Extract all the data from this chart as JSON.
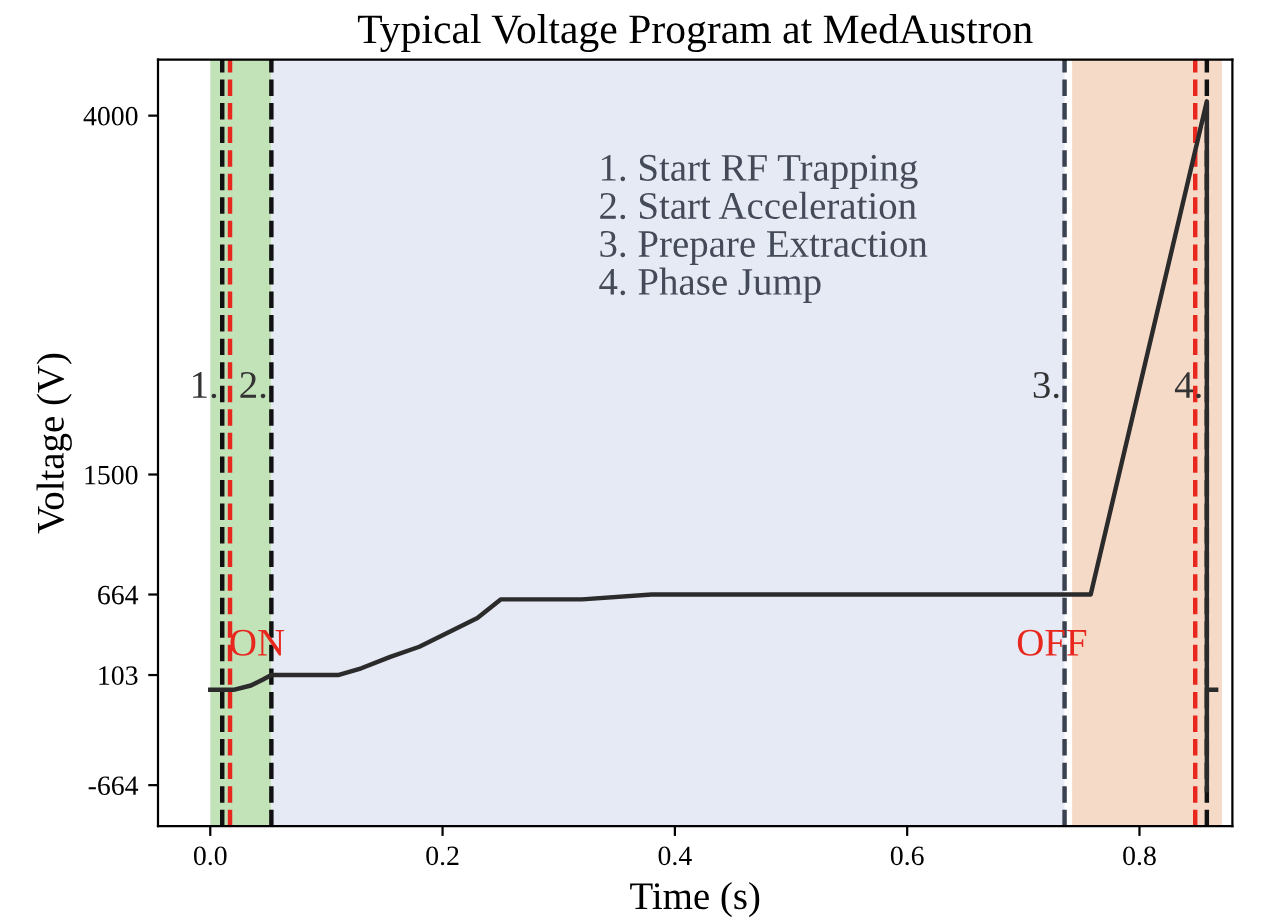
{
  "chart_data": {
    "type": "line",
    "title": "Typical Voltage Program at MedAustron",
    "xlabel": "Time (s)",
    "ylabel": "Voltage (V)",
    "series": [
      {
        "color": "#2b2b2b",
        "x": [
          0.0,
          0.02,
          0.035,
          0.045,
          0.0526,
          0.11,
          0.13,
          0.155,
          0.18,
          0.2,
          0.23,
          0.25,
          0.32,
          0.38,
          0.758,
          0.858,
          0.858
        ],
        "values": [
          0,
          0,
          30,
          70,
          103,
          103,
          150,
          230,
          300,
          380,
          500,
          630,
          630,
          664,
          664,
          4100,
          -700
        ]
      },
      {
        "color": "#2b2b2b",
        "x": [
          0.858,
          0.866
        ],
        "values": [
          0,
          0
        ]
      }
    ],
    "xlim": [
      -0.045,
      0.88
    ],
    "ylim": [
      -950,
      4390
    ],
    "xticks": [
      {
        "value": 0,
        "label": "0.0"
      },
      0.2,
      0.4,
      0.6,
      0.8
    ],
    "yticks": [
      -664,
      103,
      664,
      1500,
      4000
    ],
    "grid": false,
    "line_style": "solid",
    "marker": "none",
    "bands": [
      {
        "axis": "x",
        "from": 0.0,
        "to": 0.0526,
        "color": "#c2e2b8"
      },
      {
        "axis": "x",
        "from": 0.0526,
        "to": 0.7355,
        "color": "#e6eaf5"
      },
      {
        "axis": "x",
        "from": 0.742,
        "to": 0.871,
        "color": "#f6dac8"
      }
    ],
    "ref_lines": [
      {
        "axis": "x",
        "value": 0.0103,
        "color": "#111111",
        "line_style": "dashed"
      },
      {
        "axis": "x",
        "value": 0.017,
        "color": "#e8281e",
        "line_style": "dashed"
      },
      {
        "axis": "x",
        "value": 0.0526,
        "color": "#111111",
        "line_style": "dashed"
      },
      {
        "axis": "x",
        "value": 0.7355,
        "color": "#3a4150",
        "line_style": "dashed"
      },
      {
        "axis": "x",
        "value": 0.848,
        "color": "#e8281e",
        "line_style": "dashed"
      },
      {
        "axis": "x",
        "value": 0.858,
        "color": "#111111",
        "line_style": "dashed"
      }
    ],
    "annotations": [
      {
        "text": "1.",
        "x": 0.0103,
        "y": 2100
      },
      {
        "text": "2.",
        "x": 0.0526,
        "y": 2100
      },
      {
        "text": "3.",
        "x": 0.7355,
        "y": 2100
      },
      {
        "text": "4.",
        "x": 0.858,
        "y": 2100
      },
      "ON",
      "OFF",
      "1. Start RF Trapping\n2. Start Acceleration\n3. Prepare Extraction\n4. Phase Jump"
    ]
  }
}
